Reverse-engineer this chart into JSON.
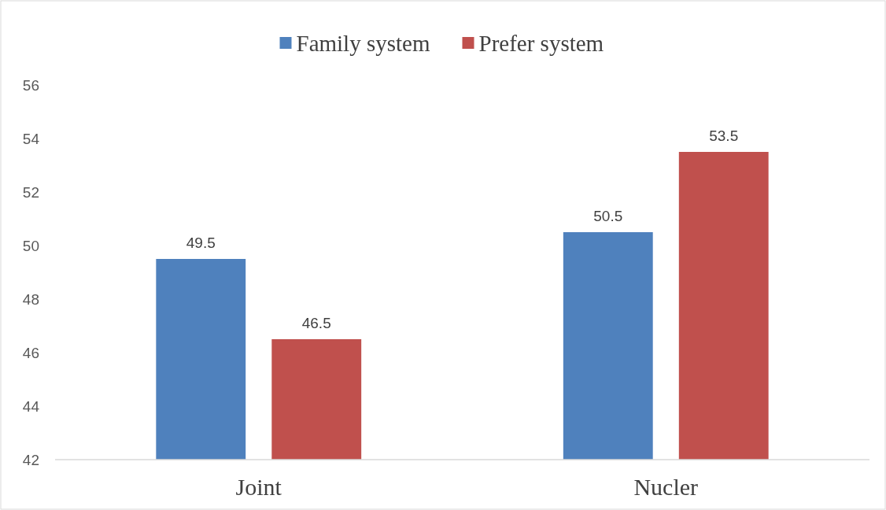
{
  "chart_data": {
    "type": "bar",
    "categories": [
      "Joint",
      "Nucler"
    ],
    "series": [
      {
        "name": "Family system",
        "color": "#4f81bd",
        "values": [
          49.5,
          50.5
        ]
      },
      {
        "name": "Prefer system",
        "color": "#c0504d",
        "values": [
          46.5,
          53.5
        ]
      }
    ],
    "ylim": [
      42,
      56
    ],
    "yticks": [
      42,
      44,
      46,
      48,
      50,
      52,
      54,
      56
    ],
    "grid": false,
    "legend": "top",
    "data_labels": true
  }
}
